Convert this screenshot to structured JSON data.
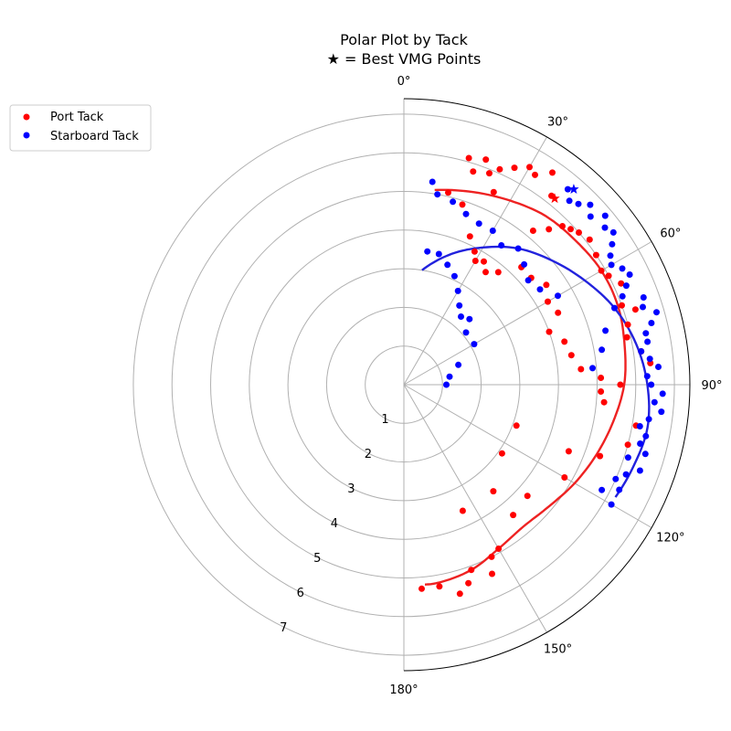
{
  "chart_data": {
    "type": "scatter",
    "projection": "polar",
    "theta_zero": "N",
    "theta_direction": "clockwise",
    "title": "Polar Plot by Tack",
    "subtitle": "★ = Best VMG Points",
    "r_ticks": [
      "1",
      "2",
      "3",
      "4",
      "5",
      "6",
      "7"
    ],
    "theta_ticks": [
      "0°",
      "30°",
      "60°",
      "90°",
      "120°",
      "150°",
      "180°"
    ],
    "rlim": [
      0,
      7.4
    ],
    "grid": true,
    "legend_position": "upper-left",
    "colors": {
      "port": "#ff0000",
      "starboard": "#0000ff",
      "port_curve": "#ee2222",
      "starboard_curve": "#2222dd"
    },
    "series": [
      {
        "name": "Port Tack",
        "key": "port",
        "points": [
          [
            20,
            6.2
          ],
          [
            22,
            5.9
          ],
          [
            24,
            6.1
          ],
          [
            25,
            5.5
          ],
          [
            27,
            6.3
          ],
          [
            30,
            6.5
          ],
          [
            32,
            6.4
          ],
          [
            35,
            6.7
          ],
          [
            38,
            6.2
          ],
          [
            16,
            6.1
          ],
          [
            18,
            5.8
          ],
          [
            13,
            5.1
          ],
          [
            18,
            4.9
          ],
          [
            24,
            4.2
          ],
          [
            28,
            3.9
          ],
          [
            30,
            3.7
          ],
          [
            33,
            3.8
          ],
          [
            36,
            3.6
          ],
          [
            40,
            3.8
          ],
          [
            43,
            5.5
          ],
          [
            45,
            5.8
          ],
          [
            47,
            5.9
          ],
          [
            49,
            6.0
          ],
          [
            52,
            6.1
          ],
          [
            56,
            6.0
          ],
          [
            60,
            5.9
          ],
          [
            62,
            6.0
          ],
          [
            65,
            6.2
          ],
          [
            70,
            6.0
          ],
          [
            72,
            6.3
          ],
          [
            75,
            6.0
          ],
          [
            78,
            5.9
          ],
          [
            82,
            6.2
          ],
          [
            85,
            6.4
          ],
          [
            90,
            5.6
          ],
          [
            92,
            5.1
          ],
          [
            95,
            5.2
          ],
          [
            100,
            6.1
          ],
          [
            105,
            6.0
          ],
          [
            110,
            5.4
          ],
          [
            112,
            4.6
          ],
          [
            120,
            4.8
          ],
          [
            132,
            4.3
          ],
          [
            140,
            4.4
          ],
          [
            150,
            4.9
          ],
          [
            153,
            5.0
          ],
          [
            155,
            5.4
          ],
          [
            160,
            5.1
          ],
          [
            162,
            5.4
          ],
          [
            165,
            5.6
          ],
          [
            170,
            5.3
          ],
          [
            175,
            5.3
          ],
          [
            60,
            4.3
          ],
          [
            65,
            4.4
          ],
          [
            70,
            4.0
          ],
          [
            75,
            4.3
          ],
          [
            80,
            4.4
          ],
          [
            85,
            4.6
          ],
          [
            88,
            5.1
          ],
          [
            110,
            3.1
          ],
          [
            125,
            3.1
          ],
          [
            140,
            3.6
          ],
          [
            155,
            3.6
          ],
          [
            45,
            4.3
          ],
          [
            50,
            4.3
          ],
          [
            55,
            4.5
          ],
          [
            40,
            5.2
          ]
        ]
      },
      {
        "name": "Starboard Tack",
        "key": "starboard",
        "points": [
          [
            10,
            3.5
          ],
          [
            15,
            3.5
          ],
          [
            20,
            3.3
          ],
          [
            25,
            3.1
          ],
          [
            30,
            2.8
          ],
          [
            35,
            2.5
          ],
          [
            40,
            2.3
          ],
          [
            45,
            2.4
          ],
          [
            50,
            2.1
          ],
          [
            60,
            2.1
          ],
          [
            70,
            1.5
          ],
          [
            80,
            1.2
          ],
          [
            90,
            1.1
          ],
          [
            8,
            5.3
          ],
          [
            10,
            5.0
          ],
          [
            15,
            4.9
          ],
          [
            20,
            4.7
          ],
          [
            25,
            4.6
          ],
          [
            30,
            4.6
          ],
          [
            35,
            4.4
          ],
          [
            40,
            4.6
          ],
          [
            45,
            4.4
          ],
          [
            50,
            4.2
          ],
          [
            55,
            4.3
          ],
          [
            60,
            4.6
          ],
          [
            40,
            6.6
          ],
          [
            42,
            6.4
          ],
          [
            44,
            6.5
          ],
          [
            46,
            6.7
          ],
          [
            48,
            6.5
          ],
          [
            50,
            6.8
          ],
          [
            52,
            6.6
          ],
          [
            54,
            6.7
          ],
          [
            56,
            6.5
          ],
          [
            58,
            6.3
          ],
          [
            60,
            6.2
          ],
          [
            62,
            6.4
          ],
          [
            64,
            6.5
          ],
          [
            66,
            6.3
          ],
          [
            68,
            6.1
          ],
          [
            70,
            6.6
          ],
          [
            72,
            6.5
          ],
          [
            74,
            6.8
          ],
          [
            76,
            6.6
          ],
          [
            78,
            6.4
          ],
          [
            80,
            6.4
          ],
          [
            82,
            6.2
          ],
          [
            84,
            6.4
          ],
          [
            86,
            6.6
          ],
          [
            88,
            6.3
          ],
          [
            90,
            6.4
          ],
          [
            92,
            6.7
          ],
          [
            94,
            6.5
          ],
          [
            96,
            6.7
          ],
          [
            98,
            6.4
          ],
          [
            100,
            6.2
          ],
          [
            102,
            6.4
          ],
          [
            104,
            6.3
          ],
          [
            106,
            6.5
          ],
          [
            108,
            6.1
          ],
          [
            110,
            6.5
          ],
          [
            112,
            6.2
          ],
          [
            114,
            6.0
          ],
          [
            116,
            6.2
          ],
          [
            118,
            5.8
          ],
          [
            120,
            6.2
          ],
          [
            70,
            5.8
          ],
          [
            75,
            5.4
          ],
          [
            80,
            5.2
          ],
          [
            85,
            4.9
          ]
        ]
      }
    ],
    "fit_curves": [
      {
        "key": "port",
        "points": [
          [
            9,
            5.1
          ],
          [
            20,
            5.3
          ],
          [
            30,
            5.5
          ],
          [
            40,
            5.7
          ],
          [
            50,
            5.8
          ],
          [
            60,
            5.9
          ],
          [
            70,
            5.9
          ],
          [
            80,
            5.8
          ],
          [
            90,
            5.7
          ],
          [
            100,
            5.5
          ],
          [
            110,
            5.3
          ],
          [
            120,
            5.1
          ],
          [
            130,
            4.9
          ],
          [
            140,
            4.8
          ],
          [
            150,
            4.9
          ],
          [
            160,
            5.1
          ],
          [
            170,
            5.2
          ],
          [
            174,
            5.2
          ]
        ]
      },
      {
        "key": "starboard",
        "points": [
          [
            9,
            3.0
          ],
          [
            20,
            3.6
          ],
          [
            30,
            4.1
          ],
          [
            40,
            4.6
          ],
          [
            50,
            5.0
          ],
          [
            60,
            5.4
          ],
          [
            70,
            5.8
          ],
          [
            80,
            6.1
          ],
          [
            90,
            6.3
          ],
          [
            100,
            6.4
          ],
          [
            110,
            6.3
          ],
          [
            118,
            6.2
          ]
        ]
      }
    ],
    "best_vmg": [
      {
        "key": "port",
        "theta": 39,
        "r": 6.2
      },
      {
        "key": "starboard",
        "theta": 41,
        "r": 6.7
      }
    ]
  }
}
